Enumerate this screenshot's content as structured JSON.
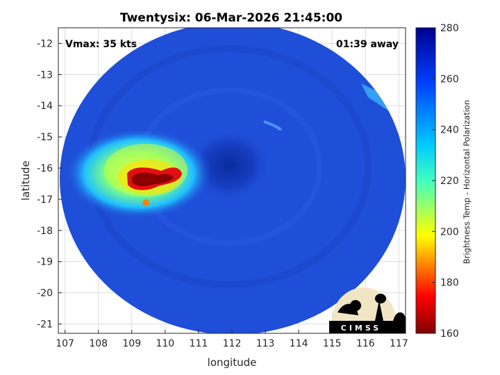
{
  "title": "Twentysix: 06-Mar-2026 21:45:00",
  "vmax_label": "Vmax: 35 kts",
  "time_label": "01:39 away",
  "colors": {
    "background_disk": "#1f4fd8",
    "frame": "#262626",
    "grid": "#dcdcdc"
  },
  "chart_data": {
    "type": "heatmap",
    "title": "Twentysix: 06-Mar-2026 21:45:00",
    "xlabel": "longitude",
    "ylabel": "latitude",
    "xlim": [
      106.8,
      117.2
    ],
    "ylim": [
      -21.3,
      -11.5
    ],
    "xticks": [
      107,
      108,
      109,
      110,
      111,
      112,
      113,
      114,
      115,
      116,
      117
    ],
    "yticks": [
      -12,
      -13,
      -14,
      -15,
      -16,
      -17,
      -18,
      -19,
      -20,
      -21
    ],
    "grid": true,
    "colorbar": {
      "label": "Brightness Temp - Horizontal Polarization",
      "range": [
        160,
        280
      ],
      "ticks": [
        160,
        180,
        200,
        220,
        240,
        260,
        280
      ],
      "colormap": "jet",
      "placement": "right"
    },
    "features": [
      {
        "name": "cold cloud core",
        "center": [
          109.6,
          -16.3
        ],
        "min_value": 165
      },
      {
        "name": "warm eye region",
        "center": [
          112.0,
          -16.0
        ],
        "approx_value": 270
      }
    ]
  },
  "logo": {
    "text": "CIMSS"
  }
}
